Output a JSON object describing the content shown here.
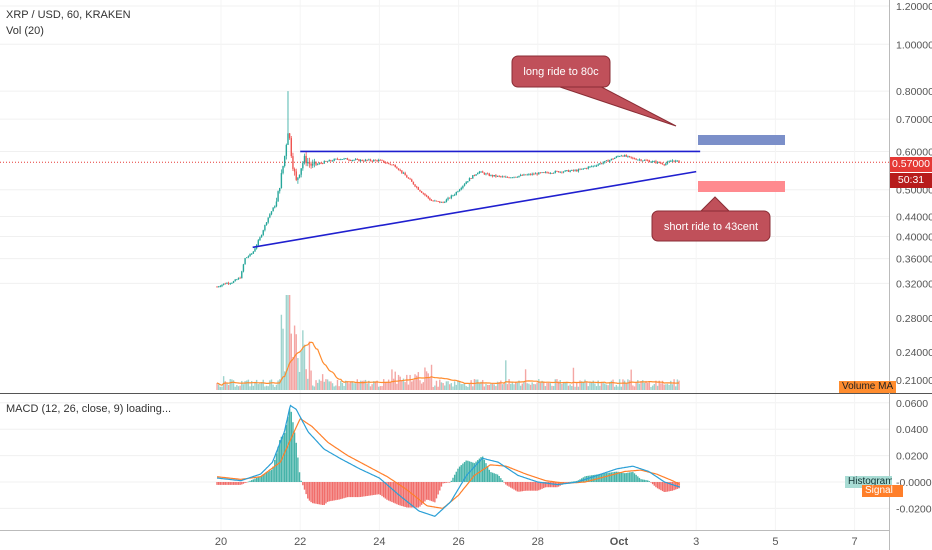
{
  "header": {
    "symbol_label": "XRP / USD, 60, KRAKEN",
    "volume_label": "Vol (20)",
    "macd_label": "MACD (12, 26, close, 9) loading..."
  },
  "price_tags": {
    "last_price": "0.57000",
    "countdown": "50:31"
  },
  "indicator_tags": {
    "volume_ma": "Volume MA",
    "histogram": "Histogram",
    "signal": "Signal"
  },
  "annotations": {
    "long_target": "long ride to 80c",
    "short_target": "short ride to 43cent"
  },
  "colors": {
    "up": "#26a69a",
    "down": "#ef5350",
    "trendline": "#1f1fcf",
    "long_zone": "#7b8fc9",
    "short_zone": "#ff8a8f",
    "callout_fill": "#c0505a",
    "macd_line": "#2a9fd6",
    "signal_line": "#ff7f2a"
  },
  "chart_data": {
    "type": "candlestick",
    "price_axis": {
      "scale": "log",
      "ticks": [
        "0.32000",
        "0.36000",
        "0.40000",
        "0.44000",
        "0.50000",
        "0.60000",
        "0.70000",
        "0.80000",
        "1.00000",
        "1.20000"
      ]
    },
    "x_axis_ticks": [
      "20",
      "22",
      "24",
      "26",
      "28",
      "Oct",
      "3",
      "5",
      "7"
    ],
    "macd_axis": {
      "ticks": [
        "0.0600",
        "0.0400",
        "0.0200",
        "-0.0000",
        "-0.0200"
      ]
    },
    "volume_axis": {
      "ticks": [
        "0.28000",
        "0.24000",
        "0.21000"
      ]
    },
    "price_path": [
      [
        19.9,
        0.315
      ],
      [
        20.1,
        0.32
      ],
      [
        20.3,
        0.322
      ],
      [
        20.5,
        0.33
      ],
      [
        20.6,
        0.36
      ],
      [
        20.8,
        0.37
      ],
      [
        21.0,
        0.4
      ],
      [
        21.2,
        0.44
      ],
      [
        21.4,
        0.47
      ],
      [
        21.5,
        0.52
      ],
      [
        21.6,
        0.58
      ],
      [
        21.7,
        0.67
      ],
      [
        21.8,
        0.57
      ],
      [
        21.9,
        0.52
      ],
      [
        22.1,
        0.58
      ],
      [
        22.3,
        0.56
      ],
      [
        22.6,
        0.57
      ],
      [
        23.0,
        0.58
      ],
      [
        23.5,
        0.575
      ],
      [
        24.0,
        0.575
      ],
      [
        24.4,
        0.56
      ],
      [
        24.7,
        0.53
      ],
      [
        25.0,
        0.5
      ],
      [
        25.3,
        0.475
      ],
      [
        25.6,
        0.47
      ],
      [
        25.9,
        0.49
      ],
      [
        26.2,
        0.52
      ],
      [
        26.5,
        0.545
      ],
      [
        26.8,
        0.535
      ],
      [
        27.2,
        0.53
      ],
      [
        27.6,
        0.535
      ],
      [
        28.0,
        0.54
      ],
      [
        28.5,
        0.545
      ],
      [
        29.0,
        0.548
      ],
      [
        29.4,
        0.56
      ],
      [
        29.8,
        0.575
      ],
      [
        30.1,
        0.59
      ],
      [
        30.4,
        0.58
      ],
      [
        30.7,
        0.575
      ],
      [
        31.0,
        0.57
      ],
      [
        31.2,
        0.565
      ],
      [
        31.4,
        0.575
      ],
      [
        31.6,
        0.57
      ]
    ],
    "trendlines": [
      {
        "from": [
          22.0,
          0.6
        ],
        "to": [
          32.1,
          0.6
        ]
      },
      {
        "from": [
          20.8,
          0.38
        ],
        "to": [
          32.0,
          0.545
        ]
      }
    ],
    "macd_line": [
      [
        19.9,
        0.003
      ],
      [
        20.5,
        0.001
      ],
      [
        21.0,
        0.006
      ],
      [
        21.3,
        0.015
      ],
      [
        21.6,
        0.038
      ],
      [
        21.75,
        0.058
      ],
      [
        21.9,
        0.055
      ],
      [
        22.2,
        0.038
      ],
      [
        22.6,
        0.025
      ],
      [
        23.0,
        0.018
      ],
      [
        23.5,
        0.01
      ],
      [
        24.0,
        0.003
      ],
      [
        24.5,
        -0.01
      ],
      [
        25.0,
        -0.022
      ],
      [
        25.4,
        -0.026
      ],
      [
        25.8,
        -0.015
      ],
      [
        26.2,
        0.005
      ],
      [
        26.6,
        0.018
      ],
      [
        27.0,
        0.015
      ],
      [
        27.5,
        0.005
      ],
      [
        28.0,
        0.0
      ],
      [
        28.5,
        -0.002
      ],
      [
        29.0,
        0.0
      ],
      [
        29.5,
        0.005
      ],
      [
        30.0,
        0.01
      ],
      [
        30.4,
        0.012
      ],
      [
        30.8,
        0.008
      ],
      [
        31.2,
        0.0
      ],
      [
        31.6,
        -0.004
      ]
    ],
    "signal_line": [
      [
        19.9,
        0.004
      ],
      [
        20.5,
        0.002
      ],
      [
        21.0,
        0.004
      ],
      [
        21.5,
        0.015
      ],
      [
        21.8,
        0.035
      ],
      [
        22.0,
        0.048
      ],
      [
        22.3,
        0.042
      ],
      [
        22.7,
        0.03
      ],
      [
        23.2,
        0.02
      ],
      [
        23.7,
        0.012
      ],
      [
        24.2,
        0.004
      ],
      [
        24.7,
        -0.006
      ],
      [
        25.2,
        -0.018
      ],
      [
        25.6,
        -0.02
      ],
      [
        26.0,
        -0.01
      ],
      [
        26.4,
        0.005
      ],
      [
        26.8,
        0.013
      ],
      [
        27.2,
        0.012
      ],
      [
        27.7,
        0.006
      ],
      [
        28.2,
        0.001
      ],
      [
        28.7,
        -0.001
      ],
      [
        29.2,
        0.0
      ],
      [
        29.7,
        0.004
      ],
      [
        30.2,
        0.008
      ],
      [
        30.6,
        0.009
      ],
      [
        31.0,
        0.006
      ],
      [
        31.4,
        0.001
      ],
      [
        31.6,
        -0.002
      ]
    ]
  }
}
